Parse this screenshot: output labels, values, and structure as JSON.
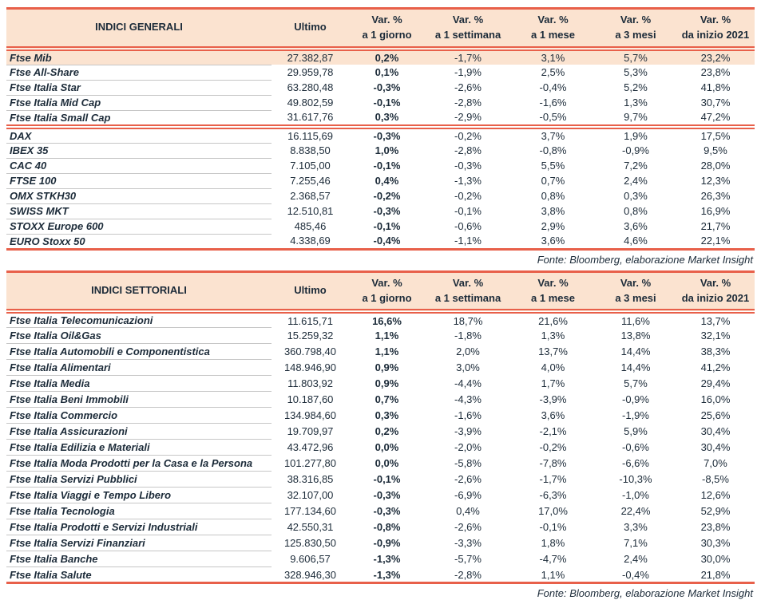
{
  "colors": {
    "accent": "#e8604a",
    "panel_bg": "#fbe3d0",
    "text": "#1c2b39",
    "separator": "#c6c6c6"
  },
  "columns": {
    "ultimo": "Ultimo",
    "var": [
      {
        "l1": "Var. %",
        "l2": "a 1 giorno"
      },
      {
        "l1": "Var. %",
        "l2": "a 1 settimana"
      },
      {
        "l1": "Var. %",
        "l2": "a 1 mese"
      },
      {
        "l1": "Var. %",
        "l2": "a 3 mesi"
      },
      {
        "l1": "Var. %",
        "l2": "da inizio 2021"
      }
    ]
  },
  "tables": [
    {
      "title": "INDICI GENERALI",
      "source": "Fonte: Bloomberg, elaborazione Market Insight",
      "groups": [
        {
          "rows": [
            {
              "name": "Ftse Mib",
              "ultimo": "27.382,87",
              "d1": "0,2%",
              "w1": "-1,7%",
              "m1": "3,1%",
              "m3": "5,7%",
              "ytd": "23,2%",
              "highlight": true
            },
            {
              "name": "Ftse All-Share",
              "ultimo": "29.959,78",
              "d1": "0,1%",
              "w1": "-1,9%",
              "m1": "2,5%",
              "m3": "5,3%",
              "ytd": "23,8%"
            },
            {
              "name": "Ftse Italia Star",
              "ultimo": "63.280,48",
              "d1": "-0,3%",
              "w1": "-2,6%",
              "m1": "-0,4%",
              "m3": "5,2%",
              "ytd": "41,8%"
            },
            {
              "name": "Ftse Italia Mid Cap",
              "ultimo": "49.802,59",
              "d1": "-0,1%",
              "w1": "-2,8%",
              "m1": "-1,6%",
              "m3": "1,3%",
              "ytd": "30,7%"
            },
            {
              "name": "Ftse Italia Small Cap",
              "ultimo": "31.617,76",
              "d1": "0,3%",
              "w1": "-2,9%",
              "m1": "-0,5%",
              "m3": "9,7%",
              "ytd": "47,2%"
            }
          ]
        },
        {
          "rows": [
            {
              "name": "DAX",
              "ultimo": "16.115,69",
              "d1": "-0,3%",
              "w1": "-0,2%",
              "m1": "3,7%",
              "m3": "1,9%",
              "ytd": "17,5%"
            },
            {
              "name": "IBEX 35",
              "ultimo": "8.838,50",
              "d1": "1,0%",
              "w1": "-2,8%",
              "m1": "-0,8%",
              "m3": "-0,9%",
              "ytd": "9,5%"
            },
            {
              "name": "CAC 40",
              "ultimo": "7.105,00",
              "d1": "-0,1%",
              "w1": "-0,3%",
              "m1": "5,5%",
              "m3": "7,2%",
              "ytd": "28,0%"
            },
            {
              "name": "FTSE 100",
              "ultimo": "7.255,46",
              "d1": "0,4%",
              "w1": "-1,3%",
              "m1": "0,7%",
              "m3": "2,4%",
              "ytd": "12,3%"
            },
            {
              "name": "OMX STKH30",
              "ultimo": "2.368,57",
              "d1": "-0,2%",
              "w1": "-0,2%",
              "m1": "0,8%",
              "m3": "0,3%",
              "ytd": "26,3%"
            },
            {
              "name": "SWISS MKT",
              "ultimo": "12.510,81",
              "d1": "-0,3%",
              "w1": "-0,1%",
              "m1": "3,8%",
              "m3": "0,8%",
              "ytd": "16,9%"
            },
            {
              "name": "STOXX Europe 600",
              "ultimo": "485,46",
              "d1": "-0,1%",
              "w1": "-0,6%",
              "m1": "2,9%",
              "m3": "3,6%",
              "ytd": "21,7%"
            },
            {
              "name": "EURO Stoxx 50",
              "ultimo": "4.338,69",
              "d1": "-0,4%",
              "w1": "-1,1%",
              "m1": "3,6%",
              "m3": "4,6%",
              "ytd": "22,1%"
            }
          ]
        }
      ]
    },
    {
      "title": "INDICI SETTORIALI",
      "source": "Fonte: Bloomberg, elaborazione Market Insight",
      "groups": [
        {
          "rows": [
            {
              "name": "Ftse Italia Telecomunicazioni",
              "ultimo": "11.615,71",
              "d1": "16,6%",
              "w1": "18,7%",
              "m1": "21,6%",
              "m3": "11,6%",
              "ytd": "13,7%"
            },
            {
              "name": "Ftse Italia Oil&Gas",
              "ultimo": "15.259,32",
              "d1": "1,1%",
              "w1": "-1,8%",
              "m1": "1,3%",
              "m3": "13,8%",
              "ytd": "32,1%"
            },
            {
              "name": "Ftse Italia Automobili e Componentistica",
              "ultimo": "360.798,40",
              "d1": "1,1%",
              "w1": "2,0%",
              "m1": "13,7%",
              "m3": "14,4%",
              "ytd": "38,3%"
            },
            {
              "name": "Ftse Italia Alimentari",
              "ultimo": "148.946,90",
              "d1": "0,9%",
              "w1": "3,0%",
              "m1": "4,0%",
              "m3": "14,4%",
              "ytd": "41,2%"
            },
            {
              "name": "Ftse Italia Media",
              "ultimo": "11.803,92",
              "d1": "0,9%",
              "w1": "-4,4%",
              "m1": "1,7%",
              "m3": "5,7%",
              "ytd": "29,4%"
            },
            {
              "name": "Ftse Italia Beni Immobili",
              "ultimo": "10.187,60",
              "d1": "0,7%",
              "w1": "-4,3%",
              "m1": "-3,9%",
              "m3": "-0,9%",
              "ytd": "16,0%"
            },
            {
              "name": "Ftse Italia Commercio",
              "ultimo": "134.984,60",
              "d1": "0,3%",
              "w1": "-1,6%",
              "m1": "3,6%",
              "m3": "-1,9%",
              "ytd": "25,6%"
            },
            {
              "name": "Ftse Italia Assicurazioni",
              "ultimo": "19.709,97",
              "d1": "0,2%",
              "w1": "-3,9%",
              "m1": "-2,1%",
              "m3": "5,9%",
              "ytd": "30,4%"
            },
            {
              "name": "Ftse Italia Edilizia e Materiali",
              "ultimo": "43.472,96",
              "d1": "0,0%",
              "w1": "-2,0%",
              "m1": "-0,2%",
              "m3": "-0,6%",
              "ytd": "30,4%"
            },
            {
              "name": "Ftse Italia Moda Prodotti per la Casa e la Persona",
              "ultimo": "101.277,80",
              "d1": "0,0%",
              "w1": "-5,8%",
              "m1": "-7,8%",
              "m3": "-6,6%",
              "ytd": "7,0%"
            },
            {
              "name": "Ftse Italia Servizi Pubblici",
              "ultimo": "38.316,85",
              "d1": "-0,1%",
              "w1": "-2,6%",
              "m1": "-1,7%",
              "m3": "-10,3%",
              "ytd": "-8,5%"
            },
            {
              "name": "Ftse Italia Viaggi e Tempo Libero",
              "ultimo": "32.107,00",
              "d1": "-0,3%",
              "w1": "-6,9%",
              "m1": "-6,3%",
              "m3": "-1,0%",
              "ytd": "12,6%"
            },
            {
              "name": "Ftse Italia Tecnologia",
              "ultimo": "177.134,60",
              "d1": "-0,3%",
              "w1": "0,4%",
              "m1": "17,0%",
              "m3": "22,4%",
              "ytd": "52,9%"
            },
            {
              "name": "Ftse Italia Prodotti e Servizi Industriali",
              "ultimo": "42.550,31",
              "d1": "-0,8%",
              "w1": "-2,6%",
              "m1": "-0,1%",
              "m3": "3,3%",
              "ytd": "23,8%"
            },
            {
              "name": "Ftse Italia Servizi Finanziari",
              "ultimo": "125.830,50",
              "d1": "-0,9%",
              "w1": "-3,3%",
              "m1": "1,8%",
              "m3": "7,1%",
              "ytd": "30,3%"
            },
            {
              "name": "Ftse Italia Banche",
              "ultimo": "9.606,57",
              "d1": "-1,3%",
              "w1": "-5,7%",
              "m1": "-4,7%",
              "m3": "2,4%",
              "ytd": "30,0%"
            },
            {
              "name": "Ftse Italia Salute",
              "ultimo": "328.946,30",
              "d1": "-1,3%",
              "w1": "-2,8%",
              "m1": "1,1%",
              "m3": "-0,4%",
              "ytd": "21,8%"
            }
          ]
        }
      ]
    }
  ]
}
